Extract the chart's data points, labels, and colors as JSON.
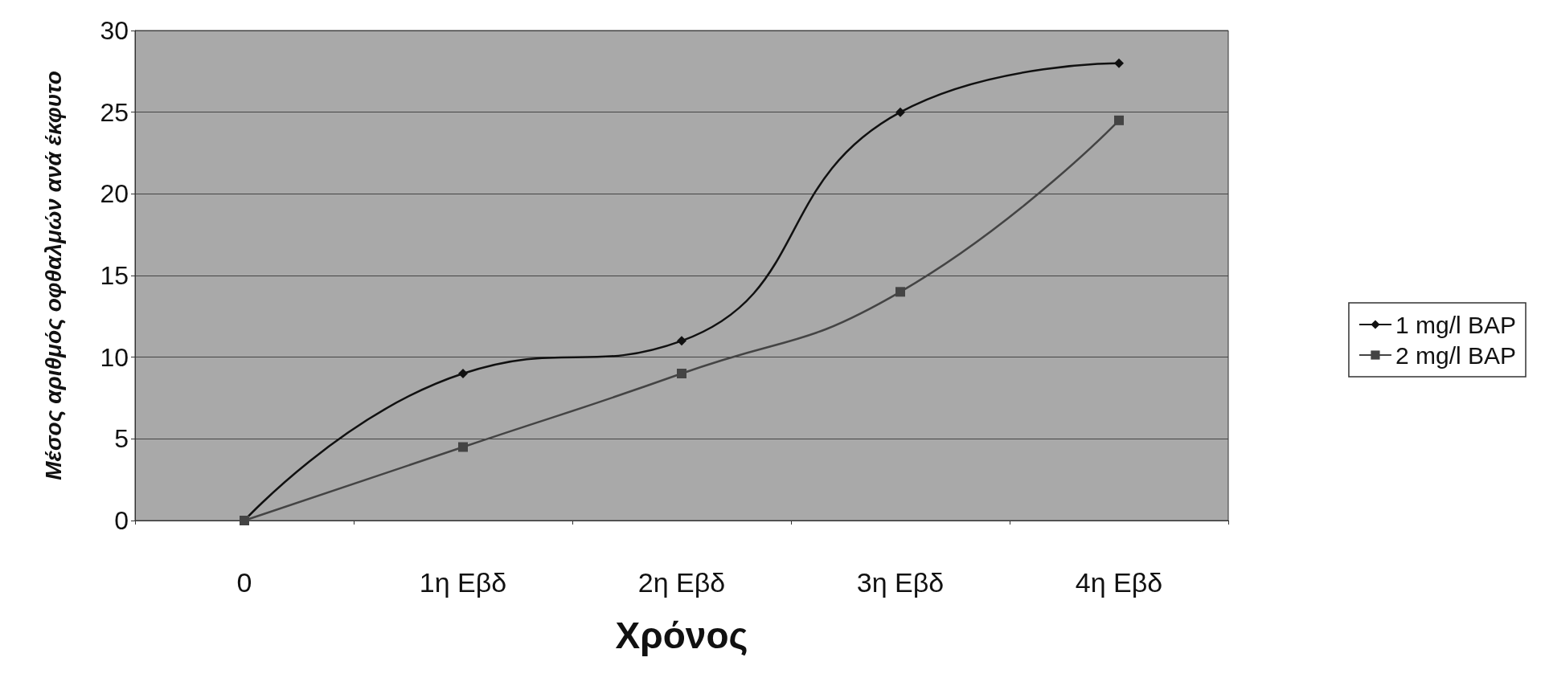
{
  "chart_data": {
    "type": "line",
    "xlabel": "Χρόνος",
    "ylabel": "Μέσος αριθμός οφθαλμών ανά έκφυτο",
    "categories": [
      "0",
      "1η Εβδ",
      "2η Εβδ",
      "3η Εβδ",
      "4η Εβδ"
    ],
    "series": [
      {
        "name": "1 mg/l BAP",
        "color": "#111111",
        "marker": "diamond",
        "values": [
          0,
          9,
          11,
          25,
          28
        ]
      },
      {
        "name": "2 mg/l BAP",
        "color": "#444444",
        "marker": "square",
        "values": [
          0,
          4.5,
          9,
          14,
          24.5
        ]
      }
    ],
    "ylim": [
      0,
      30
    ],
    "yticks": [
      0,
      5,
      10,
      15,
      20,
      25,
      30
    ],
    "grid": "y",
    "legend": "right",
    "line_style": "solid"
  }
}
